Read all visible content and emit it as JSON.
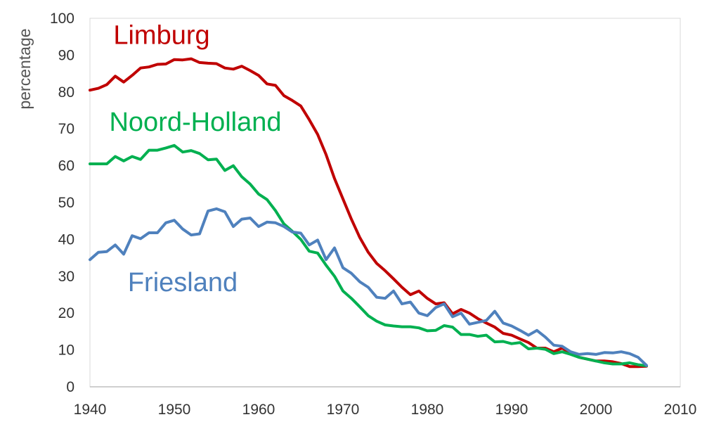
{
  "chart_data": {
    "type": "line",
    "title": "",
    "xlabel": "",
    "ylabel": "percentage",
    "xlim": [
      1940,
      2010
    ],
    "ylim": [
      0,
      100
    ],
    "xticks": [
      1940,
      1950,
      1960,
      1970,
      1980,
      1990,
      2000,
      2010
    ],
    "yticks": [
      0,
      10,
      20,
      30,
      40,
      50,
      60,
      70,
      80,
      90,
      100
    ],
    "grid": false,
    "legend": "inline labels",
    "series": [
      {
        "name": "Limburg",
        "color": "#c00000",
        "points": [
          [
            1940,
            80.5
          ],
          [
            1941,
            81
          ],
          [
            1942,
            82
          ],
          [
            1943,
            84.3
          ],
          [
            1944,
            82.7
          ],
          [
            1945,
            84.5
          ],
          [
            1946,
            86.5
          ],
          [
            1947,
            86.8
          ],
          [
            1948,
            87.5
          ],
          [
            1949,
            87.6
          ],
          [
            1950,
            88.8
          ],
          [
            1951,
            88.7
          ],
          [
            1952,
            89
          ],
          [
            1953,
            88
          ],
          [
            1954,
            87.8
          ],
          [
            1955,
            87.7
          ],
          [
            1956,
            86.5
          ],
          [
            1957,
            86.2
          ],
          [
            1958,
            87
          ],
          [
            1959,
            85.8
          ],
          [
            1960,
            84.5
          ],
          [
            1961,
            82.2
          ],
          [
            1962,
            81.8
          ],
          [
            1963,
            79
          ],
          [
            1964,
            77.7
          ],
          [
            1965,
            76.2
          ],
          [
            1966,
            72.5
          ],
          [
            1967,
            68.5
          ],
          [
            1968,
            63
          ],
          [
            1969,
            56.5
          ],
          [
            1970,
            51
          ],
          [
            1971,
            45.5
          ],
          [
            1972,
            40.5
          ],
          [
            1973,
            36.5
          ],
          [
            1974,
            33.5
          ],
          [
            1975,
            31.5
          ],
          [
            1976,
            29.3
          ],
          [
            1977,
            27
          ],
          [
            1978,
            25
          ],
          [
            1979,
            26
          ],
          [
            1980,
            24
          ],
          [
            1981,
            22.5
          ],
          [
            1982,
            22.8
          ],
          [
            1983,
            19.8
          ],
          [
            1984,
            21
          ],
          [
            1985,
            20
          ],
          [
            1986,
            18.5
          ],
          [
            1987,
            17.3
          ],
          [
            1988,
            16.2
          ],
          [
            1989,
            14.5
          ],
          [
            1990,
            14
          ],
          [
            1991,
            13
          ],
          [
            1992,
            12
          ],
          [
            1993,
            10.5
          ],
          [
            1994,
            10.5
          ],
          [
            1995,
            9.5
          ],
          [
            1996,
            10.5
          ],
          [
            1997,
            9
          ],
          [
            1998,
            8
          ],
          [
            1999,
            7.5
          ],
          [
            2000,
            7
          ],
          [
            2001,
            7
          ],
          [
            2002,
            6.8
          ],
          [
            2003,
            6.3
          ],
          [
            2004,
            5.5
          ],
          [
            2005,
            5.5
          ],
          [
            2006,
            5.6
          ]
        ]
      },
      {
        "name": "Noord-Holland",
        "color": "#00b050",
        "points": [
          [
            1940,
            60.5
          ],
          [
            1941,
            60.5
          ],
          [
            1942,
            60.5
          ],
          [
            1943,
            62.5
          ],
          [
            1944,
            61.3
          ],
          [
            1945,
            62.5
          ],
          [
            1946,
            61.7
          ],
          [
            1947,
            64.2
          ],
          [
            1948,
            64.2
          ],
          [
            1949,
            64.8
          ],
          [
            1950,
            65.5
          ],
          [
            1951,
            63.7
          ],
          [
            1952,
            64.1
          ],
          [
            1953,
            63.3
          ],
          [
            1954,
            61.6
          ],
          [
            1955,
            61.8
          ],
          [
            1956,
            58.7
          ],
          [
            1957,
            60
          ],
          [
            1958,
            57
          ],
          [
            1959,
            55
          ],
          [
            1960,
            52.3
          ],
          [
            1961,
            50.8
          ],
          [
            1962,
            47.8
          ],
          [
            1963,
            44.2
          ],
          [
            1964,
            42.2
          ],
          [
            1965,
            40
          ],
          [
            1966,
            36.8
          ],
          [
            1967,
            36.3
          ],
          [
            1968,
            33
          ],
          [
            1969,
            30
          ],
          [
            1970,
            26
          ],
          [
            1971,
            24
          ],
          [
            1972,
            21.7
          ],
          [
            1973,
            19.3
          ],
          [
            1974,
            17.8
          ],
          [
            1975,
            16.8
          ],
          [
            1976,
            16.5
          ],
          [
            1977,
            16.3
          ],
          [
            1978,
            16.3
          ],
          [
            1979,
            16
          ],
          [
            1980,
            15.2
          ],
          [
            1981,
            15.3
          ],
          [
            1982,
            16.6
          ],
          [
            1983,
            16.2
          ],
          [
            1984,
            14.2
          ],
          [
            1985,
            14.2
          ],
          [
            1986,
            13.7
          ],
          [
            1987,
            14
          ],
          [
            1988,
            12.2
          ],
          [
            1989,
            12.3
          ],
          [
            1990,
            11.7
          ],
          [
            1991,
            12
          ],
          [
            1992,
            10.3
          ],
          [
            1993,
            10.5
          ],
          [
            1994,
            10.2
          ],
          [
            1995,
            9
          ],
          [
            1996,
            9.5
          ],
          [
            1997,
            8.8
          ],
          [
            1998,
            8
          ],
          [
            1999,
            7.5
          ],
          [
            2000,
            7
          ],
          [
            2001,
            6.5
          ],
          [
            2002,
            6.2
          ],
          [
            2003,
            6.2
          ],
          [
            2004,
            6.5
          ],
          [
            2005,
            6
          ],
          [
            2006,
            5.7
          ]
        ]
      },
      {
        "name": "Friesland",
        "color": "#4f81bd",
        "points": [
          [
            1940,
            34.5
          ],
          [
            1941,
            36.5
          ],
          [
            1942,
            36.7
          ],
          [
            1943,
            38.5
          ],
          [
            1944,
            36
          ],
          [
            1945,
            41
          ],
          [
            1946,
            40.2
          ],
          [
            1947,
            41.8
          ],
          [
            1948,
            41.8
          ],
          [
            1949,
            44.5
          ],
          [
            1950,
            45.2
          ],
          [
            1951,
            42.8
          ],
          [
            1952,
            41.2
          ],
          [
            1953,
            41.5
          ],
          [
            1954,
            47.7
          ],
          [
            1955,
            48.3
          ],
          [
            1956,
            47.5
          ],
          [
            1957,
            43.5
          ],
          [
            1958,
            45.5
          ],
          [
            1959,
            45.8
          ],
          [
            1960,
            43.5
          ],
          [
            1961,
            44.7
          ],
          [
            1962,
            44.5
          ],
          [
            1963,
            43.5
          ],
          [
            1964,
            42
          ],
          [
            1965,
            41.7
          ],
          [
            1966,
            38.5
          ],
          [
            1967,
            39.8
          ],
          [
            1968,
            34.5
          ],
          [
            1969,
            37.7
          ],
          [
            1970,
            32.3
          ],
          [
            1971,
            30.8
          ],
          [
            1972,
            28.5
          ],
          [
            1973,
            27
          ],
          [
            1974,
            24.3
          ],
          [
            1975,
            24
          ],
          [
            1976,
            26
          ],
          [
            1977,
            22.5
          ],
          [
            1978,
            23
          ],
          [
            1979,
            20
          ],
          [
            1980,
            19.3
          ],
          [
            1981,
            21.5
          ],
          [
            1982,
            22.5
          ],
          [
            1983,
            19
          ],
          [
            1984,
            20
          ],
          [
            1985,
            17
          ],
          [
            1986,
            17.5
          ],
          [
            1987,
            18
          ],
          [
            1988,
            20.5
          ],
          [
            1989,
            17.3
          ],
          [
            1990,
            16.5
          ],
          [
            1991,
            15.3
          ],
          [
            1992,
            14
          ],
          [
            1993,
            15.3
          ],
          [
            1994,
            13.5
          ],
          [
            1995,
            11.3
          ],
          [
            1996,
            11
          ],
          [
            1997,
            9.5
          ],
          [
            1998,
            8.8
          ],
          [
            1999,
            9
          ],
          [
            2000,
            8.8
          ],
          [
            2001,
            9.3
          ],
          [
            2002,
            9.2
          ],
          [
            2003,
            9.5
          ],
          [
            2004,
            9
          ],
          [
            2005,
            8
          ],
          [
            2006,
            5.8
          ]
        ]
      }
    ],
    "annotations": [
      {
        "text": "Limburg",
        "series": "Limburg",
        "x": 1948.5,
        "y": 93
      },
      {
        "text": "Noord-Holland",
        "series": "Noord-Holland",
        "x": 1952.5,
        "y": 69.5
      },
      {
        "text": "Friesland",
        "series": "Friesland",
        "x": 1951,
        "y": 26
      }
    ]
  }
}
